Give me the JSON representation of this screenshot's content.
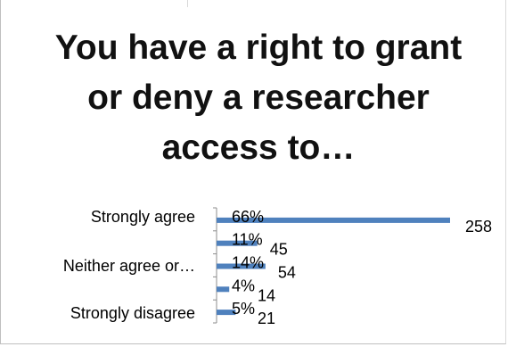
{
  "chart_data": {
    "type": "bar",
    "orientation": "horizontal",
    "title": "You have a right to grant or deny a researcher access to…",
    "categories": [
      "Strongly agree",
      "",
      "Neither agree or…",
      "",
      "Strongly disagree"
    ],
    "values": [
      258,
      45,
      54,
      14,
      21
    ],
    "percent_labels": [
      "66%",
      "11%",
      "14%",
      "4%",
      "5%"
    ],
    "count_labels": [
      "258",
      "45",
      "54",
      "14",
      "21"
    ],
    "xlim": [
      0,
      258
    ],
    "grid": false,
    "legend": "none",
    "bar_color": "#4f81bd"
  }
}
